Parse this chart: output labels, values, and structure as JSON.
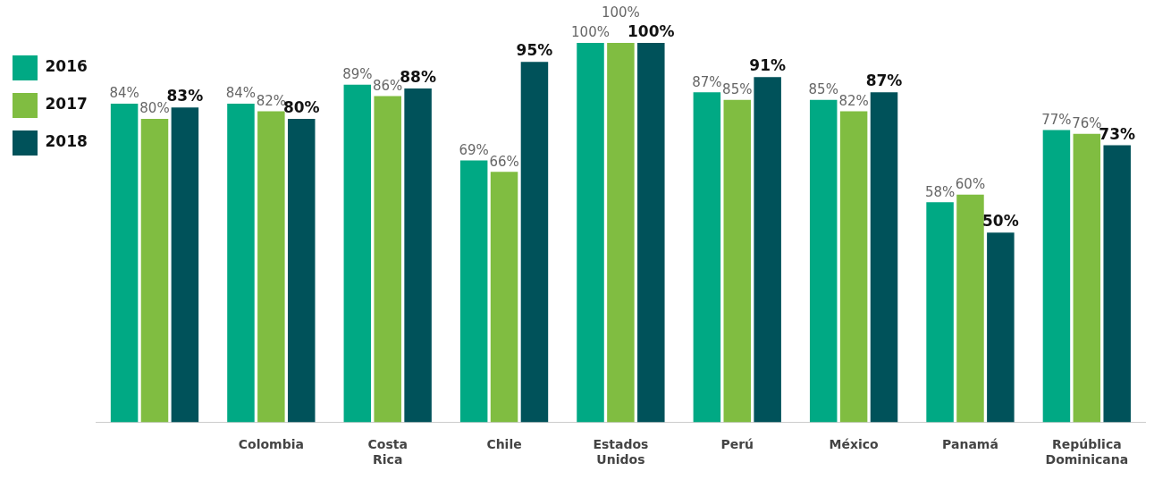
{
  "chart_data": {
    "type": "bar",
    "categories": [
      null,
      "Colombia",
      "Costa Rica",
      "Chile",
      "Estados Unidos",
      "Perú",
      "México",
      "Panamá",
      "República Dominicana"
    ],
    "series": [
      {
        "name": "2016",
        "color": "#00a984",
        "values": [
          84,
          84,
          89,
          69,
          100,
          87,
          85,
          58,
          77
        ],
        "value_labels": [
          "84%",
          "84%",
          "89%",
          "69%",
          "100%",
          "87%",
          "85%",
          "58%",
          "77%"
        ]
      },
      {
        "name": "2017",
        "color": "#80bd41",
        "values": [
          80,
          82,
          86,
          66,
          100,
          85,
          82,
          60,
          76
        ],
        "value_labels": [
          "80%",
          "82%",
          "86%",
          "66%",
          "100%",
          "85%",
          "82%",
          "60%",
          "76%"
        ]
      },
      {
        "name": "2018",
        "color": "#00525a",
        "values": [
          83,
          80,
          88,
          95,
          100,
          91,
          87,
          50,
          73
        ],
        "value_labels": [
          "83%",
          "80%",
          "88%",
          "95%",
          "100%",
          "91%",
          "87%",
          "50%",
          "73%"
        ]
      }
    ],
    "legend": "top left",
    "grid": false
  }
}
